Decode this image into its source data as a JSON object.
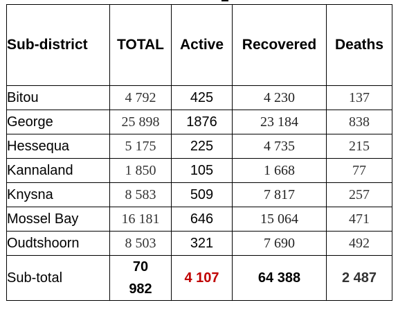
{
  "table": {
    "headers": [
      "Sub-district",
      "TOTAL",
      "Active",
      "Recovered",
      "Deaths"
    ],
    "rows": [
      {
        "name": "Bitou",
        "total": "4 792",
        "active": "425",
        "recovered": "4 230",
        "deaths": "137"
      },
      {
        "name": "George",
        "total": "25 898",
        "active": "1876",
        "recovered": "23 184",
        "deaths": "838"
      },
      {
        "name": "Hessequa",
        "total": "5 175",
        "active": "225",
        "recovered": "4 735",
        "deaths": "215"
      },
      {
        "name": "Kannaland",
        "total": "1 850",
        "active": "105",
        "recovered": "1 668",
        "deaths": "77"
      },
      {
        "name": "Knysna",
        "total": "8 583",
        "active": "509",
        "recovered": "7 817",
        "deaths": "257"
      },
      {
        "name": "Mossel Bay",
        "total": "16 181",
        "active": "646",
        "recovered": "15 064",
        "deaths": "471"
      },
      {
        "name": "Oudtshoorn",
        "total": "8 503",
        "active": "321",
        "recovered": "7 690",
        "deaths": "492"
      }
    ],
    "subtotal": {
      "name": "Sub-total",
      "total_line1": "70",
      "total_line2": "982",
      "active": "4 107",
      "recovered": "64 388",
      "deaths": "2 487"
    },
    "colors": {
      "subtotal_active": "#c00000",
      "border": "#000000"
    }
  }
}
